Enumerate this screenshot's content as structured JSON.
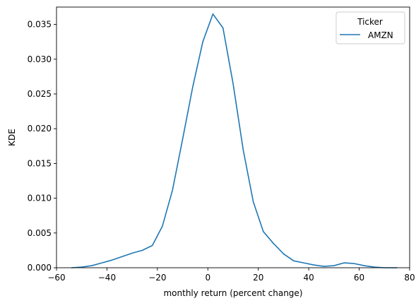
{
  "chart_data": {
    "type": "line",
    "xlabel": "monthly return (percent change)",
    "ylabel": "KDE",
    "xlim": [
      -60,
      80
    ],
    "ylim": [
      0,
      0.0375
    ],
    "x_ticks": [
      -60,
      -40,
      -20,
      0,
      20,
      40,
      60,
      80
    ],
    "x_tick_labels": [
      "−60",
      "−40",
      "−20",
      "0",
      "20",
      "40",
      "60",
      "80"
    ],
    "y_ticks": [
      0.0,
      0.005,
      0.01,
      0.015,
      0.02,
      0.025,
      0.03,
      0.035
    ],
    "y_tick_labels": [
      "0.000",
      "0.005",
      "0.010",
      "0.015",
      "0.020",
      "0.025",
      "0.030",
      "0.035"
    ],
    "grid": false,
    "legend": {
      "title": "Ticker",
      "placement": "top-right"
    },
    "series": [
      {
        "name": "AMZN",
        "color": "#1f77b4",
        "x": [
          -54,
          -50,
          -46,
          -42,
          -38,
          -34,
          -30,
          -26,
          -22,
          -18,
          -14,
          -10,
          -6,
          -2,
          2,
          6,
          10,
          14,
          18,
          22,
          26,
          30,
          34,
          38,
          42,
          46,
          50,
          54,
          58,
          62,
          66,
          70,
          75
        ],
        "y": [
          0.0,
          0.0001,
          0.0003,
          0.0007,
          0.0011,
          0.0016,
          0.0021,
          0.0025,
          0.0032,
          0.006,
          0.0112,
          0.0185,
          0.026,
          0.0325,
          0.0365,
          0.0345,
          0.0265,
          0.017,
          0.0095,
          0.0052,
          0.0035,
          0.002,
          0.001,
          0.0007,
          0.0004,
          0.0002,
          0.0003,
          0.0007,
          0.0006,
          0.0003,
          0.0001,
          0.0,
          0.0
        ]
      }
    ]
  }
}
